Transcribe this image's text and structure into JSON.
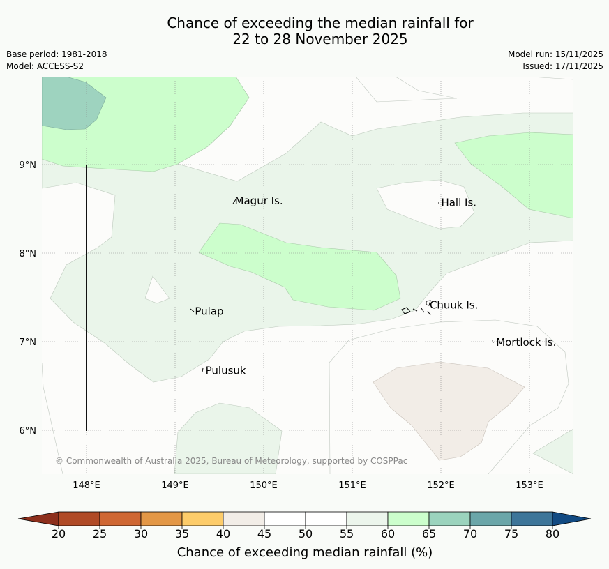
{
  "title_line1": "Chance of exceeding the median rainfall for",
  "title_line2": "22 to 28 November 2025",
  "base_period": "Base period: 1981-2018",
  "model": "Model: ACCESS-S2",
  "model_run": "Model run: 15/11/2025",
  "issued": "Issued: 17/11/2025",
  "copyright": "© Commonwealth of Australia 2025, Bureau of Meteorology, supported by COSPPac",
  "lon_ticks": [
    "148°E",
    "149°E",
    "150°E",
    "151°E",
    "152°E",
    "153°E"
  ],
  "lat_ticks": [
    "9°N",
    "8°N",
    "7°N",
    "6°N"
  ],
  "places": [
    {
      "name": "Magur Is.",
      "lon": 149.65,
      "lat": 8.6
    },
    {
      "name": "Hall Is.",
      "lon": 151.98,
      "lat": 8.58
    },
    {
      "name": "Pulap",
      "lon": 149.2,
      "lat": 7.35
    },
    {
      "name": "Chuuk Is.",
      "lon": 151.85,
      "lat": 7.42
    },
    {
      "name": "Mortlock Is.",
      "lon": 152.6,
      "lat": 7.0
    },
    {
      "name": "Pulusuk",
      "lon": 149.32,
      "lat": 6.68
    }
  ],
  "colorbar": {
    "title": "Chance of exceeding median rainfall (%)",
    "ticks": [
      "20",
      "25",
      "30",
      "35",
      "40",
      "45",
      "50",
      "55",
      "60",
      "65",
      "70",
      "75",
      "80"
    ],
    "colors": [
      "#b04a26",
      "#cf6733",
      "#e39746",
      "#fdcc6a",
      "#f2ede7",
      "#ffffff",
      "#ffffff",
      "#ecf5ec",
      "#ccfecc",
      "#9bd3bd",
      "#6ba6a9",
      "#3d7599"
    ],
    "under_color": "#8d2f1c",
    "over_color": "#124a82"
  },
  "palette": {
    "p40": "#f2ede7",
    "p45": "#fcfcfa",
    "p55": "#eaf5ea",
    "p60": "#ccfecc",
    "p65": "#9ed3bf"
  }
}
